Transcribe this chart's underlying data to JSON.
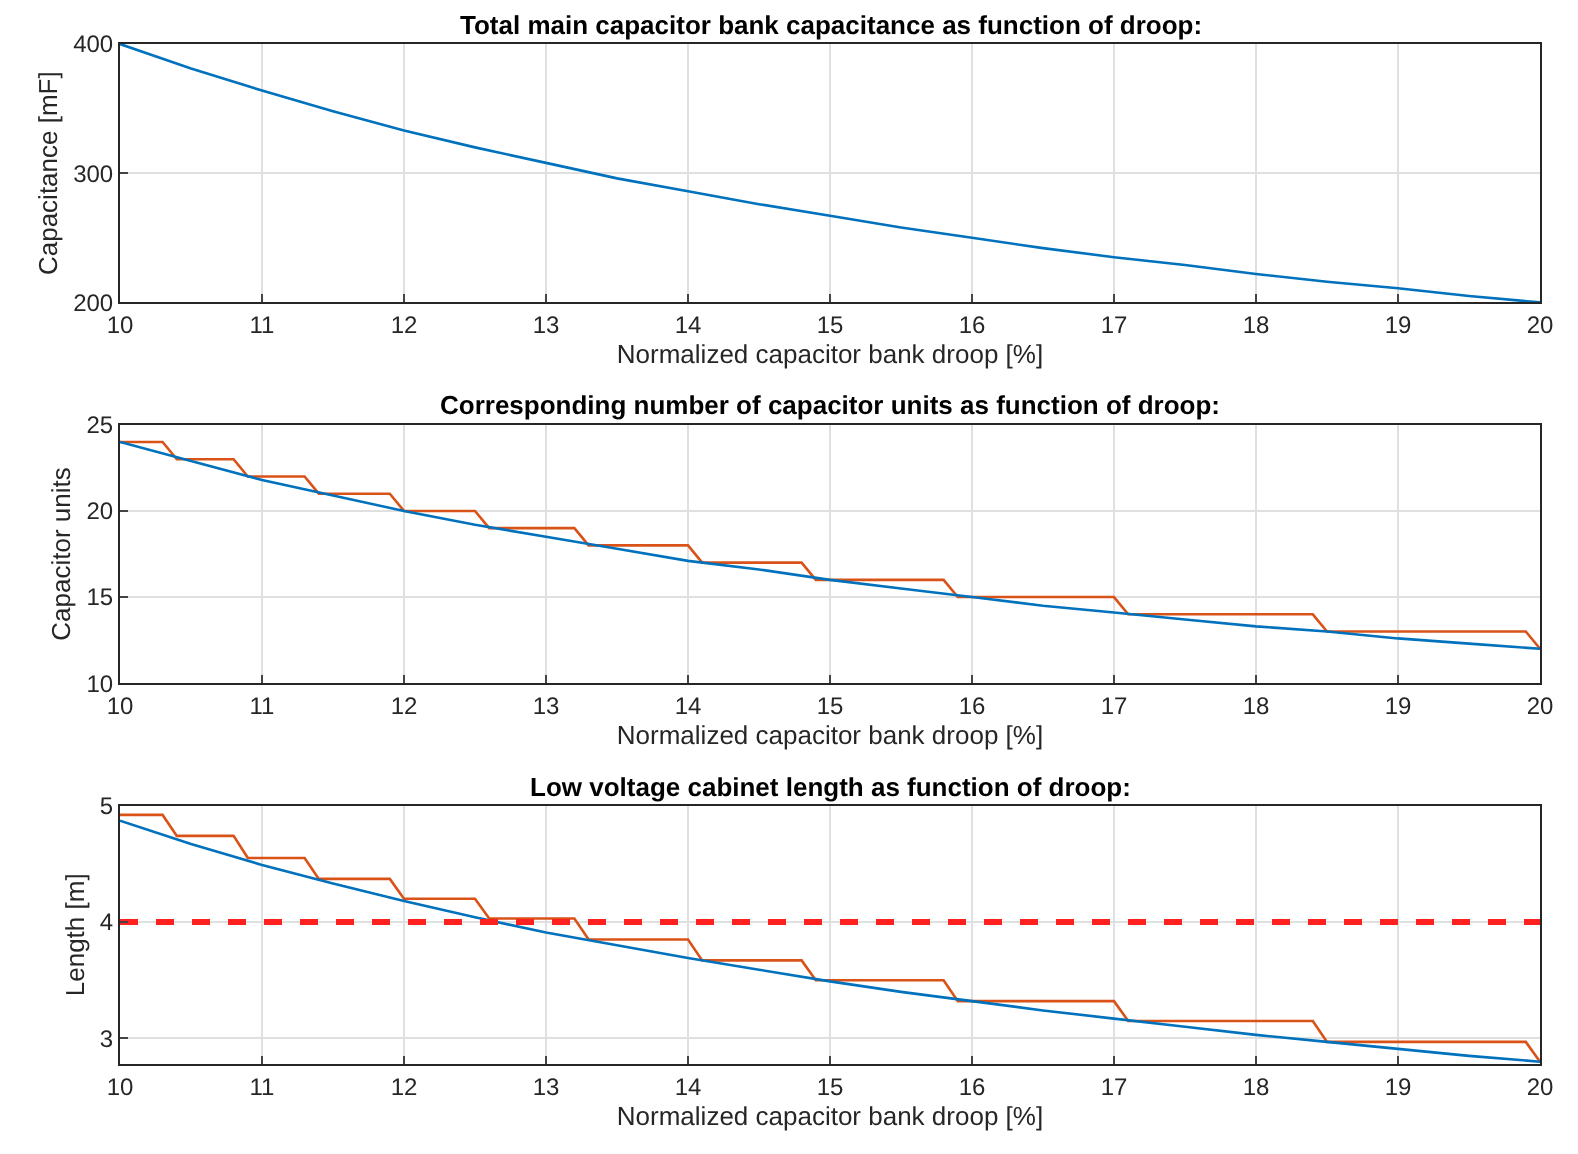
{
  "chart_data": [
    {
      "type": "line",
      "title": "Total main capacitor bank capacitance as function of droop:",
      "xlabel": "Normalized capacitor bank droop [%]",
      "ylabel": "Capacitance [mF]",
      "xlim": [
        10,
        20
      ],
      "xticks": [
        10,
        11,
        12,
        13,
        14,
        15,
        16,
        17,
        18,
        19,
        20
      ],
      "ylim": [
        200,
        400
      ],
      "yticks": [
        200,
        300,
        400
      ],
      "grid": true,
      "line_style": "solid",
      "series": [
        {
          "color": "#0072bd",
          "x": [
            10,
            10.5,
            11,
            11.5,
            12,
            12.5,
            13,
            13.5,
            14,
            14.5,
            15,
            15.5,
            16,
            16.5,
            17,
            17.5,
            18,
            18.5,
            19,
            19.5,
            20
          ],
          "values": [
            400,
            381,
            364,
            348,
            333,
            320,
            308,
            296,
            286,
            276,
            267,
            258,
            250,
            242,
            235,
            229,
            222,
            216,
            211,
            205,
            200
          ]
        }
      ]
    },
    {
      "type": "line",
      "title": "Corresponding number of capacitor units as function of droop:",
      "xlabel": "Normalized capacitor bank droop [%]",
      "ylabel": "Capacitor units",
      "xlim": [
        10,
        20
      ],
      "xticks": [
        10,
        11,
        12,
        13,
        14,
        15,
        16,
        17,
        18,
        19,
        20
      ],
      "ylim": [
        10,
        25
      ],
      "yticks": [
        10,
        15,
        20,
        25
      ],
      "grid": true,
      "line_style": "solid",
      "series": [
        {
          "color": "#d95319",
          "x": [
            10,
            10.3,
            10.4,
            10.8,
            10.9,
            11.3,
            11.4,
            11.9,
            12,
            12.5,
            12.6,
            13.2,
            13.3,
            14,
            14.1,
            14.8,
            14.9,
            15.8,
            15.9,
            17,
            17.1,
            18.4,
            18.5,
            19.9,
            20
          ],
          "values": [
            24,
            24,
            23,
            23,
            22,
            22,
            21,
            21,
            20,
            20,
            19,
            19,
            18,
            18,
            17,
            17,
            16,
            16,
            15,
            15,
            14,
            14,
            13,
            13,
            12
          ]
        },
        {
          "color": "#0072bd",
          "x": [
            10,
            10.5,
            11,
            11.5,
            12,
            12.5,
            13,
            13.5,
            14,
            14.5,
            15,
            15.5,
            16,
            16.5,
            17,
            17.5,
            18,
            18.5,
            19,
            19.5,
            20
          ],
          "values": [
            24,
            22.9,
            21.8,
            20.9,
            20,
            19.2,
            18.5,
            17.8,
            17.1,
            16.6,
            16,
            15.5,
            15,
            14.5,
            14.1,
            13.7,
            13.3,
            13,
            12.6,
            12.3,
            12
          ]
        }
      ]
    },
    {
      "type": "line",
      "title": "Low voltage cabinet length as function of droop:",
      "xlabel": "Normalized capacitor bank droop [%]",
      "ylabel": "Length [m]",
      "xlim": [
        10,
        20
      ],
      "xticks": [
        10,
        11,
        12,
        13,
        14,
        15,
        16,
        17,
        18,
        19,
        20
      ],
      "ylim": [
        2.78,
        5
      ],
      "yticks": [
        3,
        4,
        5
      ],
      "grid": true,
      "line_style": "solid",
      "series": [
        {
          "color": "#d95319",
          "x": [
            10,
            10.3,
            10.4,
            10.8,
            10.9,
            11.3,
            11.4,
            11.9,
            12,
            12.5,
            12.6,
            13.2,
            13.3,
            14,
            14.1,
            14.8,
            14.9,
            15.8,
            15.9,
            17,
            17.1,
            18.4,
            18.5,
            19.9,
            20
          ],
          "values": [
            4.92,
            4.92,
            4.74,
            4.74,
            4.55,
            4.55,
            4.37,
            4.37,
            4.2,
            4.2,
            4.03,
            4.03,
            3.85,
            3.85,
            3.67,
            3.67,
            3.5,
            3.5,
            3.32,
            3.32,
            3.15,
            3.15,
            2.97,
            2.97,
            2.8
          ]
        },
        {
          "color": "#0072bd",
          "x": [
            10,
            10.5,
            11,
            11.5,
            12,
            12.5,
            13,
            13.5,
            14,
            14.5,
            15,
            15.5,
            16,
            16.5,
            17,
            17.5,
            18,
            18.5,
            19,
            19.5,
            20
          ],
          "values": [
            4.87,
            4.67,
            4.49,
            4.33,
            4.18,
            4.04,
            3.91,
            3.8,
            3.69,
            3.59,
            3.49,
            3.4,
            3.32,
            3.24,
            3.17,
            3.1,
            3.03,
            2.97,
            2.91,
            2.85,
            2.8
          ]
        }
      ],
      "ref_lines": [
        {
          "axis": "y",
          "value": 4,
          "color": "#ff2020",
          "line_style": "dashed"
        }
      ]
    }
  ]
}
